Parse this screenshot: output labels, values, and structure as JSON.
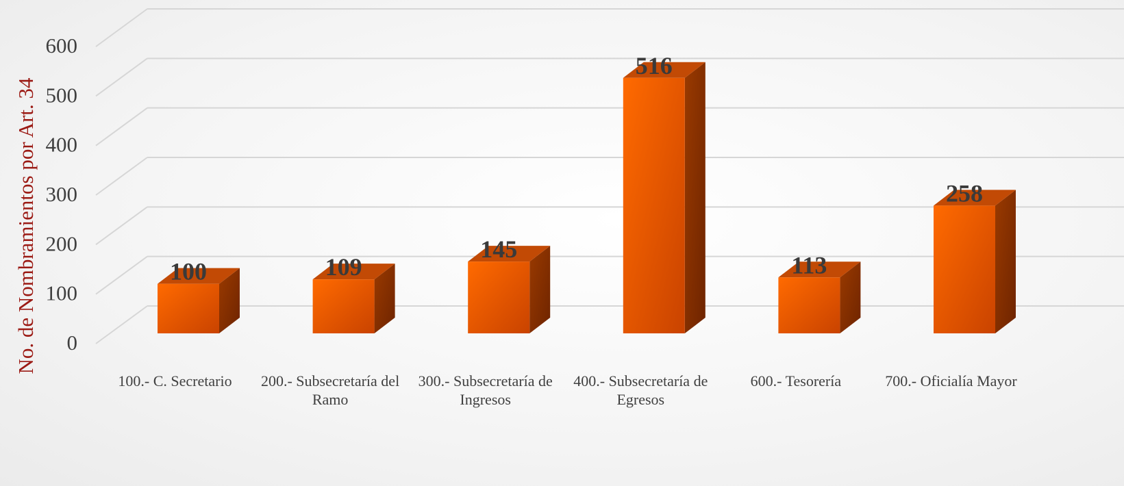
{
  "chart_data": {
    "type": "bar3d",
    "ylabel": "No. de Nombramientos por Art. 34",
    "categories": [
      "100.- C. Secretario",
      "200.- Subsecretaría del Ramo",
      "300.- Subsecretaría de Ingresos",
      "400.- Subsecretaría de Egresos",
      "600.- Tesorería",
      "700.- Oficialía Mayor"
    ],
    "values": [
      100,
      109,
      145,
      516,
      113,
      258
    ],
    "color": "#ff6a00",
    "ylim": [
      0,
      600
    ],
    "yticks": [
      0,
      100,
      200,
      300,
      400,
      500,
      600
    ],
    "grid": true
  }
}
